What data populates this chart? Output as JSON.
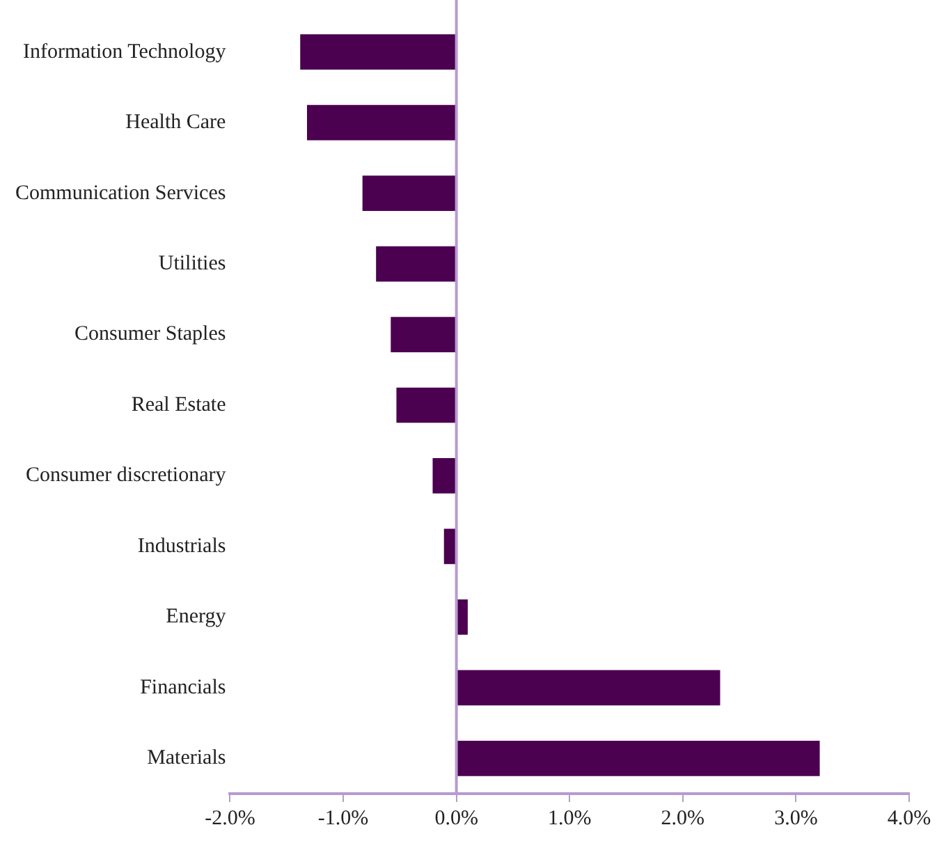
{
  "chart_data": {
    "type": "bar",
    "orientation": "horizontal",
    "categories": [
      "Information Technology",
      "Health Care",
      "Communication Services",
      "Utilities",
      "Consumer Staples",
      "Real Estate",
      "Consumer discretionary",
      "Industrials",
      "Energy",
      "Financials",
      "Materials"
    ],
    "values": [
      -1.38,
      -1.32,
      -0.83,
      -0.71,
      -0.58,
      -0.53,
      -0.21,
      -0.11,
      0.1,
      2.33,
      3.21
    ],
    "color": "#4b0050",
    "xlim": [
      -2,
      4
    ],
    "xticks": [
      {
        "value": -2,
        "label": "-2.0%"
      },
      {
        "value": -1,
        "label": "-1.0%"
      },
      {
        "value": 0,
        "label": "0.0%"
      },
      {
        "value": 1,
        "label": "1.0%"
      },
      {
        "value": 2,
        "label": "2.0%"
      },
      {
        "value": 3,
        "label": "3.0%"
      },
      {
        "value": 4,
        "label": "4.0%"
      }
    ],
    "ref_lines": [
      {
        "axis": "x",
        "value": 0,
        "color": "#b79ad0"
      }
    ],
    "grid": false,
    "legend": false
  }
}
